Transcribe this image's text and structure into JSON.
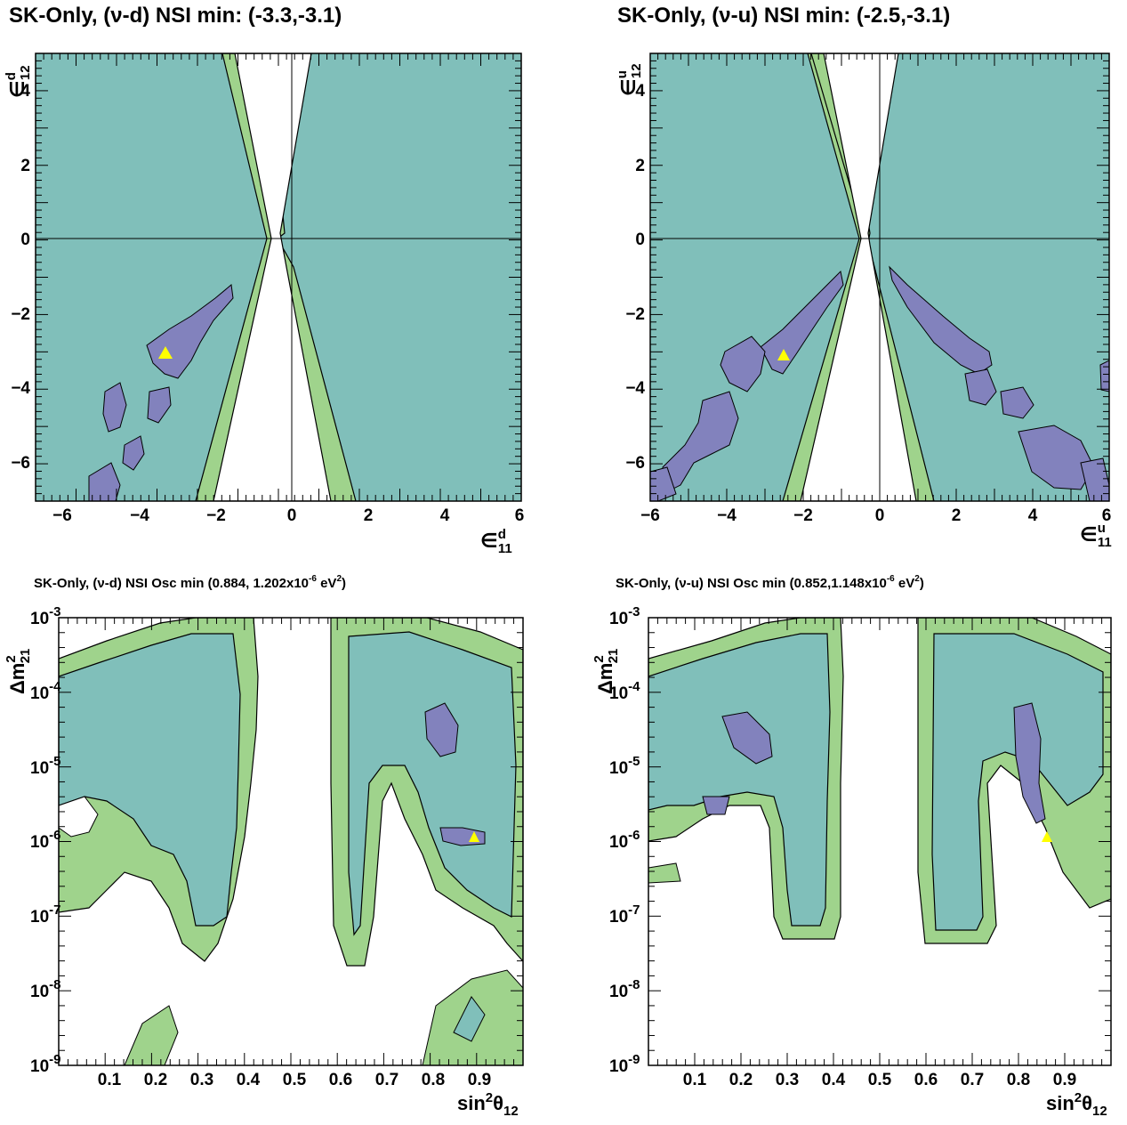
{
  "colors": {
    "green": "#9fd38c",
    "teal": "#80bfba",
    "purple": "#8282bd",
    "best_fit_marker": "#ffff00"
  },
  "panels": [
    {
      "title": "SK-Only, (ν-d) NSI min: (-3.3,-3.1)",
      "x_ticks": [
        "−6",
        "−4",
        "−2",
        "0",
        "2",
        "4",
        "6"
      ],
      "y_ticks": [
        "4",
        "2",
        "0",
        "−2",
        "−4",
        "−6"
      ],
      "x_label": {
        "main": "∈",
        "sup": "d",
        "sub": "11"
      },
      "y_label": {
        "main": "∈",
        "sup": "d",
        "sub": "12"
      }
    },
    {
      "title": "SK-Only, (ν-u) NSI min: (-2.5,-3.1)",
      "x_ticks": [
        "−6",
        "−4",
        "−2",
        "0",
        "2",
        "4",
        "6"
      ],
      "y_ticks": [
        "4",
        "2",
        "0",
        "−2",
        "−4",
        "−6"
      ],
      "x_label": {
        "main": "∈",
        "sup": "u",
        "sub": "11"
      },
      "y_label": {
        "main": "∈",
        "sup": "u",
        "sub": "12"
      }
    },
    {
      "title": "SK-Only, (ν-d) NSI Osc min (0.884, 1.202x10",
      "title_sup": "-6",
      "title_tail": " eV",
      "title_sup2": "2",
      "title_end": ")",
      "x_ticks": [
        "0.1",
        "0.2",
        "0.3",
        "0.4",
        "0.5",
        "0.6",
        "0.7",
        "0.8",
        "0.9"
      ],
      "y_ticks": [
        {
          "base": "10",
          "exp": "-3"
        },
        {
          "base": "10",
          "exp": "-4"
        },
        {
          "base": "10",
          "exp": "-5"
        },
        {
          "base": "10",
          "exp": "-6"
        },
        {
          "base": "10",
          "exp": "-7"
        },
        {
          "base": "10",
          "exp": "-8"
        },
        {
          "base": "10",
          "exp": "-9"
        }
      ],
      "x_label": {
        "main": "sin",
        "sup": "2",
        "greek": "θ",
        "sub": "12"
      },
      "y_label": {
        "main": "Δm",
        "sup": "2",
        "sub": "21"
      }
    },
    {
      "title": "SK-Only, (ν-u) NSI Osc min (0.852,1.148x10",
      "title_sup": "-6",
      "title_tail": " eV",
      "title_sup2": "2",
      "title_end": ")",
      "x_ticks": [
        "0.1",
        "0.2",
        "0.3",
        "0.4",
        "0.5",
        "0.6",
        "0.7",
        "0.8",
        "0.9"
      ],
      "y_ticks": [
        {
          "base": "10",
          "exp": "-3"
        },
        {
          "base": "10",
          "exp": "-4"
        },
        {
          "base": "10",
          "exp": "-5"
        },
        {
          "base": "10",
          "exp": "-6"
        },
        {
          "base": "10",
          "exp": "-7"
        },
        {
          "base": "10",
          "exp": "-8"
        },
        {
          "base": "10",
          "exp": "-9"
        }
      ],
      "x_label": {
        "main": "sin",
        "sup": "2",
        "greek": "θ",
        "sub": "12"
      },
      "y_label": {
        "main": "Δm",
        "sup": "2",
        "sub": "21"
      }
    }
  ],
  "chart_data": [
    {
      "type": "contour",
      "title": "SK-Only, (ν-d) NSI min: (-3.3,-3.1)",
      "x_axis": "ε11 (d)",
      "y_axis": "ε12 (d)",
      "xlim": [
        -6,
        6
      ],
      "ylim": [
        -7,
        5
      ],
      "best_fit": {
        "x": -3.3,
        "y": -3.1
      },
      "reference_lines": {
        "x": 0,
        "y": 0
      }
    },
    {
      "type": "contour",
      "title": "SK-Only, (ν-u) NSI min: (-2.5,-3.1)",
      "x_axis": "ε11 (u)",
      "y_axis": "ε12 (u)",
      "xlim": [
        -6,
        6
      ],
      "ylim": [
        -7,
        5
      ],
      "best_fit": {
        "x": -2.5,
        "y": -3.1
      },
      "reference_lines": {
        "x": 0,
        "y": 0
      }
    },
    {
      "type": "contour",
      "title": "SK-Only, (ν-d) NSI Osc min (0.884, 1.202x10^-6 eV^2)",
      "x_axis": "sin²θ12",
      "y_axis": "Δm²21",
      "xlim": [
        0,
        1
      ],
      "ylim": [
        1e-09,
        0.001
      ],
      "y_scale": "log",
      "best_fit": {
        "x": 0.884,
        "y": 1.202e-06
      }
    },
    {
      "type": "contour",
      "title": "SK-Only, (ν-u) NSI Osc min (0.852,1.148x10^-6 eV^2)",
      "x_axis": "sin²θ12",
      "y_axis": "Δm²21",
      "xlim": [
        0,
        1
      ],
      "ylim": [
        1e-09,
        0.001
      ],
      "y_scale": "log",
      "best_fit": {
        "x": 0.852,
        "y": 1.148e-06
      }
    }
  ]
}
